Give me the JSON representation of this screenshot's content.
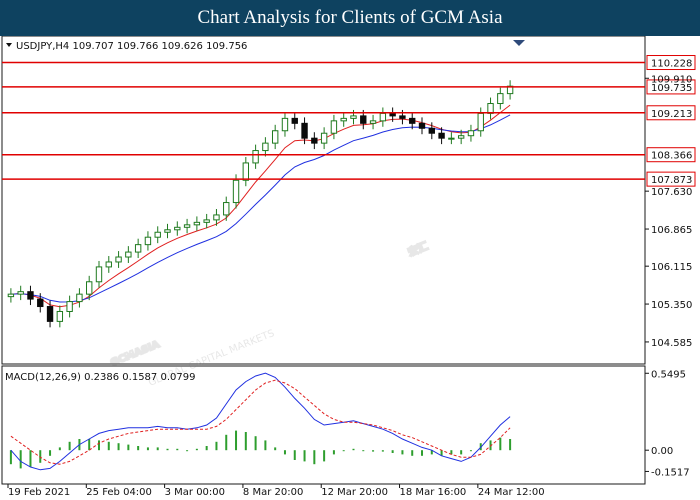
{
  "banner": {
    "title": "Chart Analysis for Clients of GCM Asia"
  },
  "watermark": {
    "brand": "GCMASIA",
    "chinese": "宏汇",
    "subtitle": "GLOBAL CAPITAL MARKETS"
  },
  "colors": {
    "frame": "#1a1a1a",
    "bull": "#1f7a1f",
    "bear": "#0a0a0a",
    "ma_fast": "#e02020",
    "ma_slow": "#2030e0",
    "level": "#e00000",
    "macd_line": "#2030e0",
    "signal_line": "#e02020",
    "histogram": "#2e9e2e"
  },
  "chart_data": [
    {
      "type": "line",
      "title": "USDJPY,H4  109.707 109.766 109.626 109.756",
      "symbol": "USDJPY,H4",
      "ohlc": [
        109.707,
        109.766,
        109.626,
        109.756
      ],
      "ylim": [
        104.2,
        110.4
      ],
      "yticks": [
        104.585,
        105.35,
        106.115,
        106.865,
        107.63,
        108.366,
        109.213,
        109.91
      ],
      "xticks": [
        "19 Feb 2021",
        "25 Feb 04:00",
        "3 Mar 00:00",
        "8 Mar 20:00",
        "12 Mar 20:00",
        "18 Mar 16:00",
        "24 Mar 12:00"
      ],
      "levels": [
        {
          "value": 110.228,
          "label": "110.228"
        },
        {
          "value": 109.735,
          "label": "109.735"
        },
        {
          "value": 109.213,
          "label": "109.213"
        },
        {
          "value": 108.366,
          "label": "108.366"
        },
        {
          "value": 107.873,
          "label": "107.873"
        }
      ],
      "series": [
        {
          "values": [
            105.55,
            105.6,
            105.45,
            105.3,
            105.0,
            105.2,
            105.4,
            105.55,
            105.8,
            106.1,
            106.2,
            106.3,
            106.4,
            106.55,
            106.7,
            106.8,
            106.85,
            106.9,
            106.95,
            107.0,
            107.05,
            107.15,
            107.4,
            107.85,
            108.2,
            108.45,
            108.6,
            108.85,
            109.1,
            109.0,
            108.7,
            108.6,
            108.8,
            109.05,
            109.1,
            109.15,
            109.0,
            109.05,
            109.2,
            109.15,
            109.1,
            109.0,
            108.9,
            108.8,
            108.7,
            108.7,
            108.75,
            108.85,
            109.2,
            109.4,
            109.6,
            109.75
          ]
        }
      ]
    },
    {
      "type": "line",
      "title": "MACD(12,26,9) 0.2386 0.1587 0.0799",
      "ylim": [
        -0.22,
        0.58
      ],
      "yticks": [
        0.5495,
        0.0,
        -0.1517
      ],
      "series": [
        {
          "values": [
            0.0,
            -0.08,
            -0.12,
            -0.14,
            -0.13,
            -0.08,
            -0.02,
            0.04,
            0.08,
            0.12,
            0.14,
            0.15,
            0.16,
            0.16,
            0.16,
            0.17,
            0.16,
            0.16,
            0.15,
            0.16,
            0.18,
            0.23,
            0.33,
            0.43,
            0.49,
            0.53,
            0.55,
            0.52,
            0.45,
            0.37,
            0.3,
            0.22,
            0.18,
            0.19,
            0.2,
            0.21,
            0.19,
            0.17,
            0.15,
            0.12,
            0.08,
            0.05,
            0.02,
            0.0,
            -0.04,
            -0.06,
            -0.08,
            -0.05,
            0.02,
            0.1,
            0.18,
            0.24
          ]
        },
        {
          "values": [
            0.1,
            0.05,
            0.0,
            -0.05,
            -0.09,
            -0.1,
            -0.08,
            -0.04,
            0.0,
            0.05,
            0.08,
            0.1,
            0.12,
            0.13,
            0.14,
            0.15,
            0.15,
            0.15,
            0.15,
            0.15,
            0.15,
            0.17,
            0.22,
            0.29,
            0.36,
            0.43,
            0.48,
            0.5,
            0.48,
            0.44,
            0.38,
            0.32,
            0.26,
            0.22,
            0.2,
            0.2,
            0.19,
            0.18,
            0.16,
            0.14,
            0.11,
            0.09,
            0.06,
            0.03,
            0.0,
            -0.03,
            -0.05,
            -0.05,
            -0.03,
            0.03,
            0.09,
            0.16
          ]
        }
      ]
    }
  ]
}
